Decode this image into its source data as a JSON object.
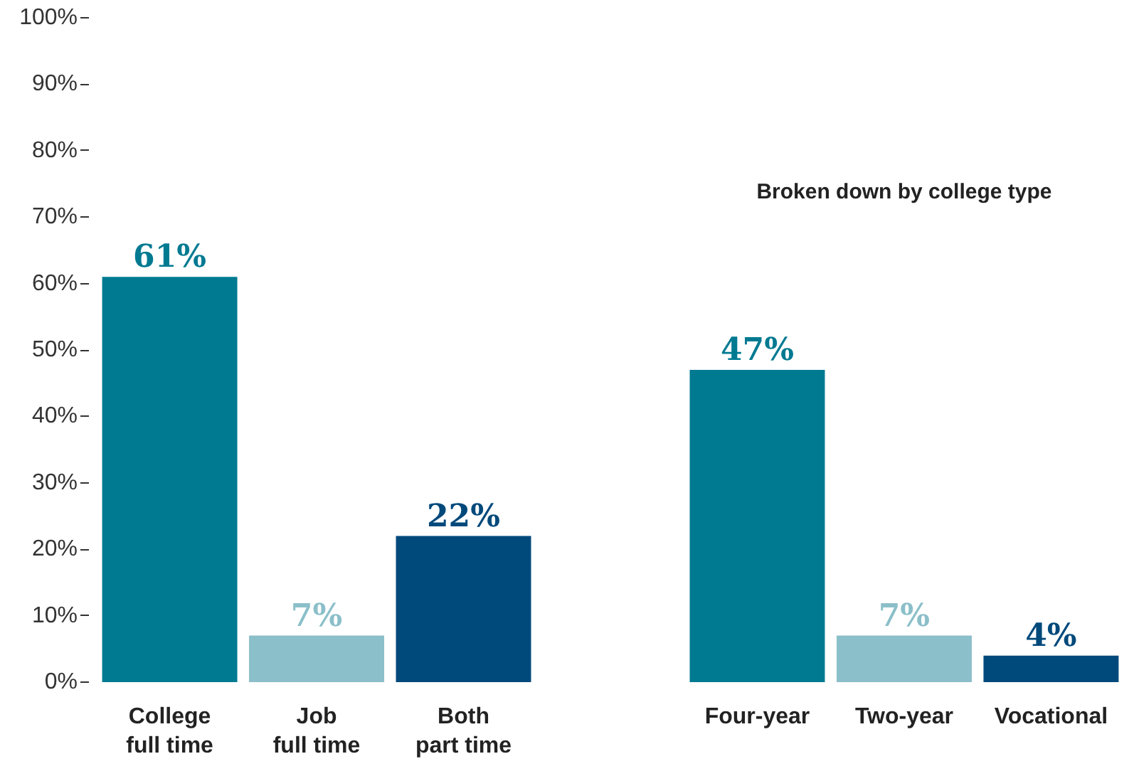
{
  "chart_data": {
    "type": "bar",
    "categories": [
      "College\nfull time",
      "Job\nfull time",
      "Both\npart time",
      null,
      "Four-year",
      "Two-year",
      "Vocational"
    ],
    "values": [
      61,
      7,
      22,
      null,
      47,
      7,
      4
    ],
    "colors": [
      "#007a91",
      "#8bbfc9",
      "#00497b",
      "#ffffff",
      "#007a91",
      "#8bbfc9",
      "#00497b"
    ],
    "value_labels": [
      "61%",
      "7%",
      "22%",
      null,
      "47%",
      "7%",
      "4%"
    ],
    "ylim": [
      0,
      100
    ],
    "yticks": [
      {
        "value": 0,
        "label": "0%"
      },
      {
        "value": 10,
        "label": "10%"
      },
      {
        "value": 20,
        "label": "20%"
      },
      {
        "value": 30,
        "label": "30%"
      },
      {
        "value": 40,
        "label": "40%"
      },
      {
        "value": 50,
        "label": "50%"
      },
      {
        "value": 60,
        "label": "60%"
      },
      {
        "value": 70,
        "label": "70%"
      },
      {
        "value": 80,
        "label": "80%"
      },
      {
        "value": 90,
        "label": "90%"
      },
      {
        "value": 100,
        "label": "100%"
      }
    ],
    "annotations": [
      "Broken down by college type"
    ],
    "grid": false
  }
}
